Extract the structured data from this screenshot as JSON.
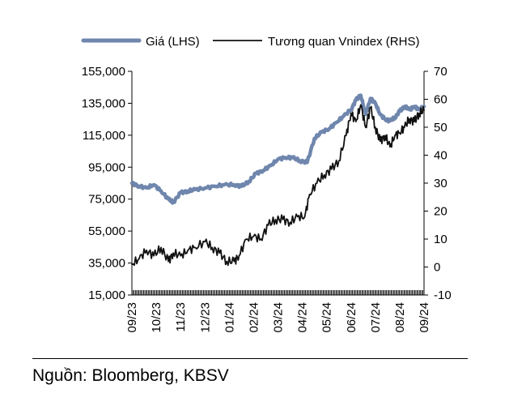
{
  "chart_data": {
    "type": "line",
    "legend": {
      "position": "top",
      "entries": [
        "Giá (LHS)",
        "Tương quan Vnindex (RHS)"
      ]
    },
    "categories": [
      "09/23",
      "10/23",
      "11/23",
      "12/23",
      "01/24",
      "02/24",
      "03/24",
      "04/24",
      "05/24",
      "06/24",
      "07/24",
      "08/24",
      "09/24"
    ],
    "y_left": {
      "min": 15000,
      "max": 155000,
      "ticks": [
        "155,000",
        "135,000",
        "115,000",
        "95,000",
        "75,000",
        "55,000",
        "35,000",
        "15,000"
      ],
      "tick_values": [
        155000,
        135000,
        115000,
        95000,
        75000,
        55000,
        35000,
        15000
      ]
    },
    "y_right": {
      "min": -10,
      "max": 70,
      "ticks": [
        "70",
        "60",
        "50",
        "40",
        "30",
        "20",
        "10",
        "0",
        "-10"
      ],
      "tick_values": [
        70,
        60,
        50,
        40,
        30,
        20,
        10,
        0,
        -10
      ]
    },
    "series": [
      {
        "name": "Giá (LHS)",
        "axis": "left",
        "color": "#6f86ad",
        "x": [
          0,
          0.3,
          0.6,
          0.9,
          1.2,
          1.5,
          1.7,
          2.0,
          2.3,
          2.6,
          3.0,
          3.4,
          3.8,
          4.2,
          4.5,
          4.8,
          5.1,
          5.4,
          5.7,
          6.0,
          6.3,
          6.6,
          6.9,
          7.2,
          7.5,
          7.8,
          8.1,
          8.4,
          8.7,
          9.0,
          9.2,
          9.4,
          9.6,
          9.8,
          10.0,
          10.2,
          10.4,
          10.6,
          10.8,
          11.0,
          11.2,
          11.4,
          11.6,
          11.8,
          12.0
        ],
        "values": [
          85000,
          83000,
          82000,
          84000,
          80000,
          75000,
          73000,
          79000,
          80000,
          81000,
          82000,
          83000,
          84000,
          84000,
          83000,
          86000,
          91000,
          93000,
          96000,
          100000,
          101000,
          101000,
          99000,
          98000,
          113000,
          117000,
          119000,
          123000,
          127000,
          131000,
          137000,
          140000,
          128000,
          138000,
          135000,
          128000,
          125000,
          124000,
          126000,
          130000,
          133000,
          131000,
          133000,
          131000,
          133000
        ]
      },
      {
        "name": "Tương quan Vnindex (RHS)",
        "axis": "right",
        "color": "#111111",
        "x": [
          0,
          0.3,
          0.6,
          0.9,
          1.2,
          1.5,
          1.7,
          2.0,
          2.3,
          2.6,
          3.0,
          3.3,
          3.6,
          3.9,
          4.2,
          4.4,
          4.7,
          5.0,
          5.3,
          5.6,
          5.9,
          6.2,
          6.5,
          6.8,
          7.1,
          7.3,
          7.6,
          7.9,
          8.2,
          8.5,
          8.8,
          9.0,
          9.2,
          9.4,
          9.6,
          9.8,
          10.0,
          10.2,
          10.4,
          10.6,
          10.8,
          11.0,
          11.2,
          11.4,
          11.6,
          11.8,
          12.0
        ],
        "values": [
          1,
          3,
          6,
          4,
          7,
          2,
          5,
          4,
          6,
          7,
          9,
          7,
          5,
          2,
          2,
          4,
          10,
          11,
          10,
          15,
          17,
          17,
          16,
          18,
          18,
          26,
          30,
          33,
          35,
          38,
          47,
          55,
          52,
          58,
          50,
          57,
          50,
          45,
          47,
          43,
          47,
          48,
          50,
          53,
          52,
          55,
          56
        ]
      }
    ]
  },
  "source": "Nguồn: Bloomberg, KBSV"
}
